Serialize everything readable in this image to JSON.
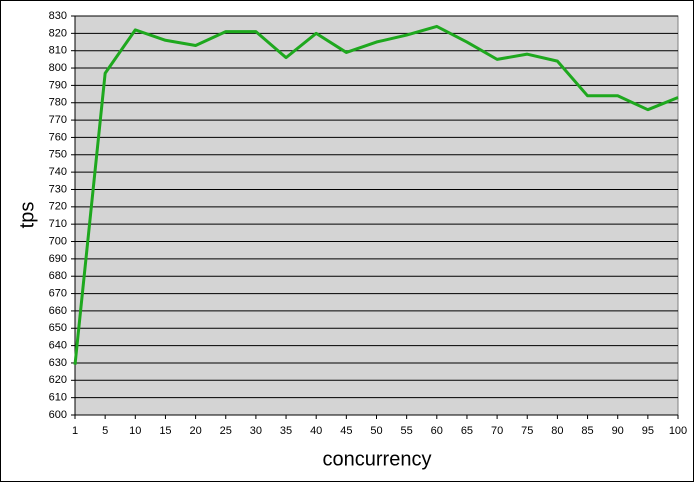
{
  "chart_data": {
    "type": "line",
    "x_label": "concurrency",
    "y_label": "tps",
    "categories": [
      "1",
      "5",
      "10",
      "15",
      "20",
      "25",
      "30",
      "35",
      "40",
      "45",
      "50",
      "55",
      "60",
      "65",
      "70",
      "75",
      "80",
      "85",
      "90",
      "95",
      "100"
    ],
    "series": [
      {
        "name": "tps",
        "color": "#1ea81e",
        "values": [
          629,
          797,
          822,
          816,
          813,
          821,
          821,
          806,
          820,
          809,
          815,
          819,
          824,
          815,
          805,
          808,
          804,
          784,
          784,
          776,
          783
        ]
      }
    ],
    "ylim": [
      600,
      830
    ],
    "yticks": [
      600,
      610,
      620,
      630,
      640,
      650,
      660,
      670,
      680,
      690,
      700,
      710,
      720,
      730,
      740,
      750,
      760,
      770,
      780,
      790,
      800,
      810,
      820,
      830
    ],
    "grid": true,
    "plot_background": "#d4d4d4"
  }
}
